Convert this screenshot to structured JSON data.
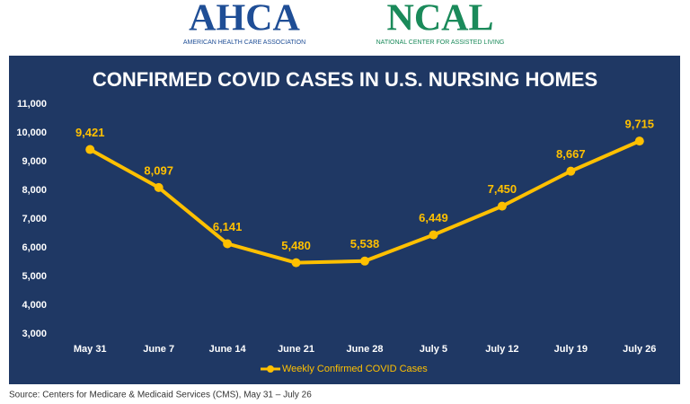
{
  "header": {
    "left_logo": "AHCA",
    "left_tagline": "AMERICAN HEALTH CARE ASSOCIATION",
    "right_logo": "NCAL",
    "right_tagline": "NATIONAL CENTER FOR ASSISTED LIVING"
  },
  "chart_data": {
    "type": "line",
    "title": "CONFIRMED COVID CASES IN U.S. NURSING HOMES",
    "categories": [
      "May 31",
      "June 7",
      "June 14",
      "June 21",
      "June 28",
      "July 5",
      "July 12",
      "July 19",
      "July 26"
    ],
    "series": [
      {
        "name": "Weekly Confirmed COVID Cases",
        "color": "#ffc000",
        "values": [
          9421,
          8097,
          6141,
          5480,
          5538,
          6449,
          7450,
          8667,
          9715
        ],
        "value_labels": [
          "9,421",
          "8,097",
          "6,141",
          "5,480",
          "5,538",
          "6,449",
          "7,450",
          "8,667",
          "9,715"
        ]
      }
    ],
    "ylim": [
      3000,
      11000
    ],
    "yticks": [
      {
        "value": 3000,
        "label": "3,000"
      },
      {
        "value": 4000,
        "label": "4,000"
      },
      {
        "value": 5000,
        "label": "5,000"
      },
      {
        "value": 6000,
        "label": "6,000"
      },
      {
        "value": 7000,
        "label": "7,000"
      },
      {
        "value": 8000,
        "label": "8,000"
      },
      {
        "value": 9000,
        "label": "9,000"
      },
      {
        "value": 10000,
        "label": "10,000"
      },
      {
        "value": 11000,
        "label": "11,000"
      }
    ],
    "grid": false,
    "legend": "bottom"
  },
  "source": "Source: Centers for Medicare & Medicaid Services (CMS), May 31 – July 26"
}
